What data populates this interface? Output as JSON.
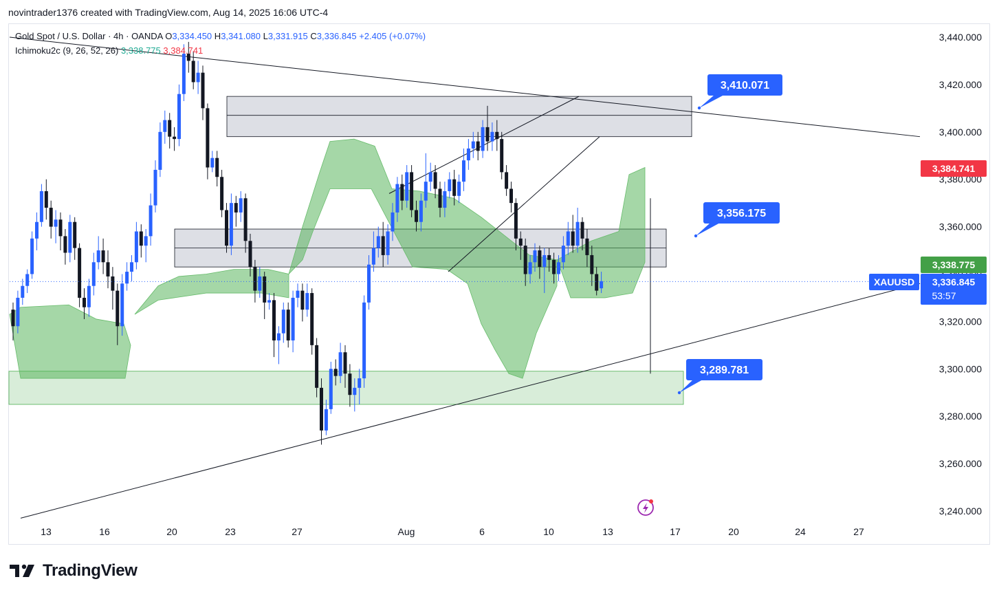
{
  "header": {
    "text": "novintrader1376 created with TradingView.com, Aug 14, 2025 16:06 UTC-4"
  },
  "legend": {
    "symbol": "Gold Spot / U.S. Dollar · 4h · OANDA",
    "o_label": "O",
    "o": "3,334.450",
    "h_label": "H",
    "h": "3,341.080",
    "l_label": "L",
    "l": "3,331.915",
    "c_label": "C",
    "c": "3,336.845",
    "change": "+2.405 (+0.07%)",
    "indicator": "Ichimoku2c (9, 26, 52, 26)",
    "ind_val1": "3,338.775",
    "ind_val2": "3,384.741"
  },
  "colors": {
    "up": "#2962ff",
    "down": "#131722",
    "cloud": "#4caf50",
    "bear_edge": "#e57373",
    "price_tag": "#2962ff",
    "red_tag": "#f23645",
    "green_tag": "#43a047"
  },
  "chart_data": {
    "type": "candlestick",
    "ylim": [
      3230,
      3450
    ],
    "y_ticks": [
      "3,440.000",
      "3,420.000",
      "3,400.000",
      "3,380.000",
      "3,360.000",
      "3,340.000",
      "3,320.000",
      "3,300.000",
      "3,280.000",
      "3,260.000",
      "3,240.000"
    ],
    "x_ticks": [
      "13",
      "16",
      "20",
      "23",
      "27",
      "Aug",
      "6",
      "10",
      "13",
      "17",
      "20",
      "24",
      "27"
    ],
    "candles": [
      [
        3325,
        3318,
        3328,
        3312
      ],
      [
        3318,
        3330,
        3333,
        3315
      ],
      [
        3330,
        3335,
        3338,
        3327
      ],
      [
        3335,
        3340,
        3342,
        3332
      ],
      [
        3340,
        3355,
        3358,
        3338
      ],
      [
        3355,
        3362,
        3366,
        3350
      ],
      [
        3362,
        3375,
        3378,
        3360
      ],
      [
        3375,
        3368,
        3380,
        3363
      ],
      [
        3368,
        3360,
        3371,
        3355
      ],
      [
        3360,
        3363,
        3367,
        3353
      ],
      [
        3363,
        3356,
        3366,
        3350
      ],
      [
        3356,
        3349,
        3359,
        3344
      ],
      [
        3349,
        3362,
        3365,
        3345
      ],
      [
        3362,
        3351,
        3364,
        3346
      ],
      [
        3351,
        3330,
        3353,
        3326
      ],
      [
        3330,
        3326,
        3334,
        3321
      ],
      [
        3326,
        3335,
        3338,
        3322
      ],
      [
        3335,
        3345,
        3349,
        3331
      ],
      [
        3345,
        3350,
        3356,
        3342
      ],
      [
        3350,
        3345,
        3355,
        3340
      ],
      [
        3345,
        3339,
        3350,
        3334
      ],
      [
        3339,
        3333,
        3343,
        3325
      ],
      [
        3333,
        3318,
        3336,
        3310
      ],
      [
        3318,
        3336,
        3340,
        3314
      ],
      [
        3336,
        3341,
        3345,
        3333
      ],
      [
        3341,
        3345,
        3348,
        3337
      ],
      [
        3345,
        3358,
        3362,
        3342
      ],
      [
        3358,
        3352,
        3361,
        3347
      ],
      [
        3352,
        3356,
        3359,
        3345
      ],
      [
        3356,
        3369,
        3374,
        3352
      ],
      [
        3369,
        3384,
        3388,
        3366
      ],
      [
        3384,
        3400,
        3404,
        3381
      ],
      [
        3400,
        3405,
        3409,
        3395
      ],
      [
        3405,
        3398,
        3408,
        3393
      ],
      [
        3398,
        3397,
        3402,
        3392
      ],
      [
        3397,
        3416,
        3420,
        3394
      ],
      [
        3416,
        3433,
        3437,
        3413
      ],
      [
        3433,
        3430,
        3438,
        3425
      ],
      [
        3430,
        3421,
        3434,
        3418
      ],
      [
        3421,
        3425,
        3430,
        3416
      ],
      [
        3425,
        3410,
        3428,
        3405
      ],
      [
        3410,
        3385,
        3412,
        3380
      ],
      [
        3385,
        3389,
        3392,
        3383
      ],
      [
        3389,
        3381,
        3392,
        3377
      ],
      [
        3381,
        3367,
        3384,
        3364
      ],
      [
        3367,
        3352,
        3370,
        3349
      ],
      [
        3352,
        3370,
        3374,
        3348
      ],
      [
        3370,
        3366,
        3373,
        3360
      ],
      [
        3366,
        3372,
        3375,
        3362
      ],
      [
        3372,
        3354,
        3374,
        3349
      ],
      [
        3354,
        3343,
        3357,
        3339
      ],
      [
        3343,
        3333,
        3346,
        3328
      ],
      [
        3333,
        3339,
        3343,
        3330
      ],
      [
        3339,
        3328,
        3341,
        3321
      ],
      [
        3328,
        3329,
        3332,
        3325
      ],
      [
        3329,
        3312,
        3332,
        3305
      ],
      [
        3312,
        3315,
        3318,
        3302
      ],
      [
        3315,
        3325,
        3328,
        3311
      ],
      [
        3325,
        3312,
        3328,
        3309
      ],
      [
        3312,
        3330,
        3333,
        3307
      ],
      [
        3330,
        3333,
        3336,
        3326
      ],
      [
        3333,
        3325,
        3336,
        3320
      ],
      [
        3325,
        3332,
        3336,
        3322
      ],
      [
        3332,
        3310,
        3334,
        3306
      ],
      [
        3310,
        3292,
        3313,
        3288
      ],
      [
        3292,
        3274,
        3296,
        3268
      ],
      [
        3274,
        3283,
        3287,
        3272
      ],
      [
        3283,
        3300,
        3303,
        3281
      ],
      [
        3300,
        3297,
        3304,
        3293
      ],
      [
        3297,
        3307,
        3311,
        3294
      ],
      [
        3307,
        3298,
        3310,
        3292
      ],
      [
        3298,
        3289,
        3302,
        3284
      ],
      [
        3289,
        3292,
        3296,
        3282
      ],
      [
        3292,
        3296,
        3300,
        3285
      ],
      [
        3296,
        3328,
        3331,
        3292
      ],
      [
        3328,
        3344,
        3348,
        3325
      ],
      [
        3344,
        3351,
        3358,
        3341
      ],
      [
        3351,
        3356,
        3360,
        3347
      ],
      [
        3356,
        3348,
        3362,
        3343
      ],
      [
        3348,
        3358,
        3361,
        3344
      ],
      [
        3358,
        3366,
        3370,
        3354
      ],
      [
        3366,
        3378,
        3381,
        3362
      ],
      [
        3378,
        3371,
        3382,
        3367
      ],
      [
        3371,
        3383,
        3386,
        3368
      ],
      [
        3383,
        3367,
        3386,
        3364
      ],
      [
        3367,
        3362,
        3371,
        3358
      ],
      [
        3362,
        3371,
        3374,
        3358
      ],
      [
        3371,
        3379,
        3391,
        3368
      ],
      [
        3379,
        3383,
        3387,
        3375
      ],
      [
        3383,
        3376,
        3386,
        3372
      ],
      [
        3376,
        3368,
        3379,
        3364
      ],
      [
        3368,
        3375,
        3379,
        3364
      ],
      [
        3375,
        3380,
        3383,
        3372
      ],
      [
        3380,
        3373,
        3384,
        3369
      ],
      [
        3373,
        3379,
        3382,
        3370
      ],
      [
        3379,
        3388,
        3393,
        3375
      ],
      [
        3388,
        3393,
        3397,
        3384
      ],
      [
        3393,
        3396,
        3400,
        3389
      ],
      [
        3396,
        3392,
        3400,
        3388
      ],
      [
        3392,
        3402,
        3405,
        3389
      ],
      [
        3402,
        3396,
        3411,
        3392
      ],
      [
        3396,
        3400,
        3404,
        3392
      ],
      [
        3400,
        3397,
        3405,
        3392
      ],
      [
        3397,
        3383,
        3400,
        3380
      ],
      [
        3383,
        3376,
        3386,
        3373
      ],
      [
        3376,
        3370,
        3379,
        3366
      ],
      [
        3370,
        3355,
        3372,
        3350
      ],
      [
        3355,
        3352,
        3358,
        3346
      ],
      [
        3352,
        3340,
        3355,
        3335
      ],
      [
        3340,
        3345,
        3348,
        3336
      ],
      [
        3345,
        3350,
        3353,
        3341
      ],
      [
        3350,
        3343,
        3352,
        3338
      ],
      [
        3343,
        3348,
        3351,
        3332
      ],
      [
        3348,
        3346,
        3351,
        3341
      ],
      [
        3346,
        3340,
        3349,
        3336
      ],
      [
        3340,
        3345,
        3348,
        3337
      ],
      [
        3345,
        3352,
        3356,
        3342
      ],
      [
        3352,
        3358,
        3362,
        3348
      ],
      [
        3358,
        3352,
        3365,
        3349
      ],
      [
        3352,
        3362,
        3368,
        3349
      ],
      [
        3362,
        3355,
        3364,
        3350
      ],
      [
        3355,
        3348,
        3359,
        3343
      ],
      [
        3348,
        3340,
        3352,
        3335
      ],
      [
        3340,
        3333,
        3343,
        3331
      ],
      [
        3334,
        3337,
        3341,
        3332
      ]
    ],
    "overlays": {
      "resistance_zone": [
        3398,
        3415
      ],
      "mid_zone": [
        3343,
        3359
      ],
      "support_zone": [
        3285,
        3299
      ],
      "descending_trendline": "from 3,440 (Jul 11) to 3,398 (Aug 29)",
      "ascending_trendline": "from 3,237 (Jul 11) to 3,335 (Aug 29)",
      "rising_channel": "Aug 1 to Aug 9"
    },
    "callouts": [
      "3,410.071",
      "3,356.175",
      "3,289.781"
    ],
    "price_tags": {
      "red": "3,384.741",
      "green": "3,338.775",
      "symbol": "XAUUSD",
      "price": "3,336.845",
      "countdown": "53:57"
    }
  }
}
